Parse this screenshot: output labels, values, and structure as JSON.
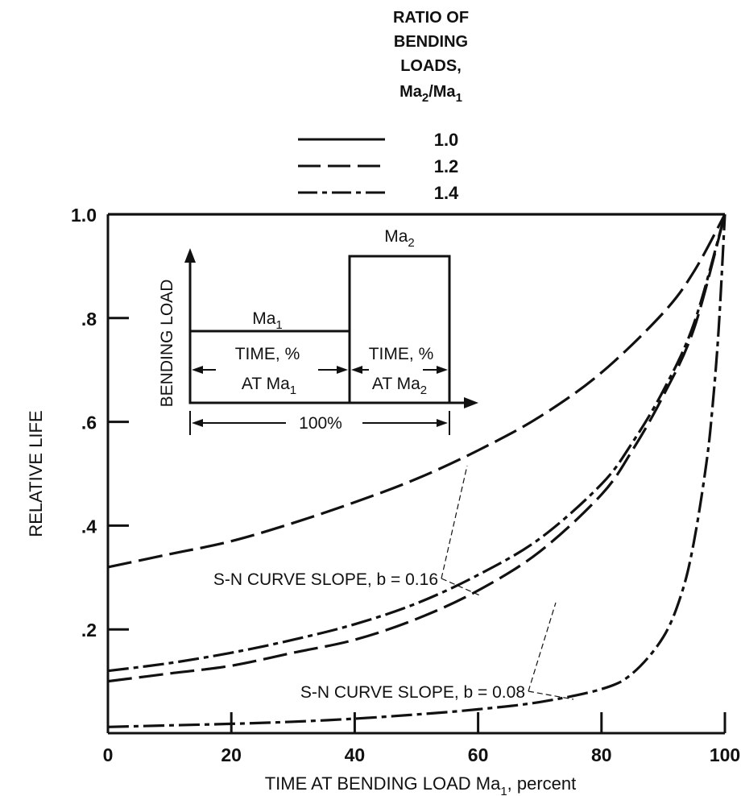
{
  "chart_data": {
    "type": "line",
    "xlabel": "TIME AT BENDING LOAD Ma",
    "xlabel_sub": "1",
    "xlabel_tail": ", percent",
    "ylabel": "RELATIVE LIFE",
    "xlim": [
      0,
      100
    ],
    "ylim": [
      0,
      1.0
    ],
    "x_ticks": [
      {
        "value": 0,
        "label": "0"
      },
      {
        "value": 20,
        "label": "20"
      },
      {
        "value": 40,
        "label": "40"
      },
      {
        "value": 60,
        "label": "60"
      },
      {
        "value": 80,
        "label": "80"
      },
      {
        "value": 100,
        "label": "100"
      }
    ],
    "y_ticks": [
      {
        "value": 0.2,
        "label": ".2"
      },
      {
        "value": 0.4,
        "label": ".4"
      },
      {
        "value": 0.6,
        "label": ".6"
      },
      {
        "value": 0.8,
        "label": ".8"
      },
      {
        "value": 1.0,
        "label": "1.0"
      }
    ],
    "legend": {
      "title_lines": [
        "RATIO OF",
        "BENDING",
        "LOADS,"
      ],
      "ratio_base": "Ma",
      "ratio_sub1": "2",
      "ratio_mid": "/Ma",
      "ratio_sub2": "1",
      "entries": [
        {
          "label": "1.0",
          "style": "solid"
        },
        {
          "label": "1.2",
          "style": "dashed"
        },
        {
          "label": "1.4",
          "style": "dash-dot"
        }
      ]
    },
    "series": [
      {
        "ratio": "1.0",
        "slope": "0.16",
        "style": "solid",
        "x": [
          0,
          100
        ],
        "y": [
          1.0,
          1.0
        ]
      },
      {
        "ratio": "1.2",
        "slope": "0.16",
        "style": "dashed",
        "x": [
          0,
          10,
          20,
          30,
          40,
          50,
          60,
          70,
          80,
          90,
          95,
          100
        ],
        "y": [
          0.32,
          0.345,
          0.37,
          0.405,
          0.445,
          0.49,
          0.545,
          0.61,
          0.695,
          0.81,
          0.89,
          1.0
        ]
      },
      {
        "ratio": "1.4",
        "slope": "0.16",
        "style": "dash-dot",
        "x": [
          0,
          10,
          20,
          30,
          40,
          50,
          60,
          70,
          80,
          85,
          90,
          95,
          100
        ],
        "y": [
          0.12,
          0.135,
          0.155,
          0.18,
          0.21,
          0.25,
          0.305,
          0.375,
          0.48,
          0.56,
          0.66,
          0.79,
          1.0
        ]
      },
      {
        "ratio": "1.2",
        "slope": "0.08",
        "style": "dashed",
        "x": [
          0,
          10,
          20,
          30,
          40,
          50,
          60,
          70,
          80,
          85,
          90,
          95,
          100
        ],
        "y": [
          0.1,
          0.115,
          0.13,
          0.155,
          0.18,
          0.22,
          0.275,
          0.35,
          0.46,
          0.545,
          0.65,
          0.78,
          1.0
        ]
      },
      {
        "ratio": "1.4",
        "slope": "0.08",
        "style": "dash-dot",
        "x": [
          0,
          10,
          20,
          30,
          40,
          50,
          60,
          70,
          80,
          85,
          90,
          93,
          95,
          97,
          98,
          99,
          100
        ],
        "y": [
          0.012,
          0.015,
          0.018,
          0.022,
          0.028,
          0.036,
          0.046,
          0.06,
          0.085,
          0.115,
          0.185,
          0.27,
          0.37,
          0.52,
          0.63,
          0.78,
          1.0
        ]
      }
    ],
    "annotations": [
      {
        "text": "S-N CURVE SLOPE, b = 0.16"
      },
      {
        "text": "S-N CURVE SLOPE, b = 0.08"
      }
    ],
    "inset": {
      "ylabel": "BENDING LOAD",
      "ma_base": "Ma",
      "ma1_sub": "1",
      "ma2_sub": "2",
      "time_label": "TIME, %",
      "at_label": "AT Ma",
      "total_label": "100%"
    }
  }
}
